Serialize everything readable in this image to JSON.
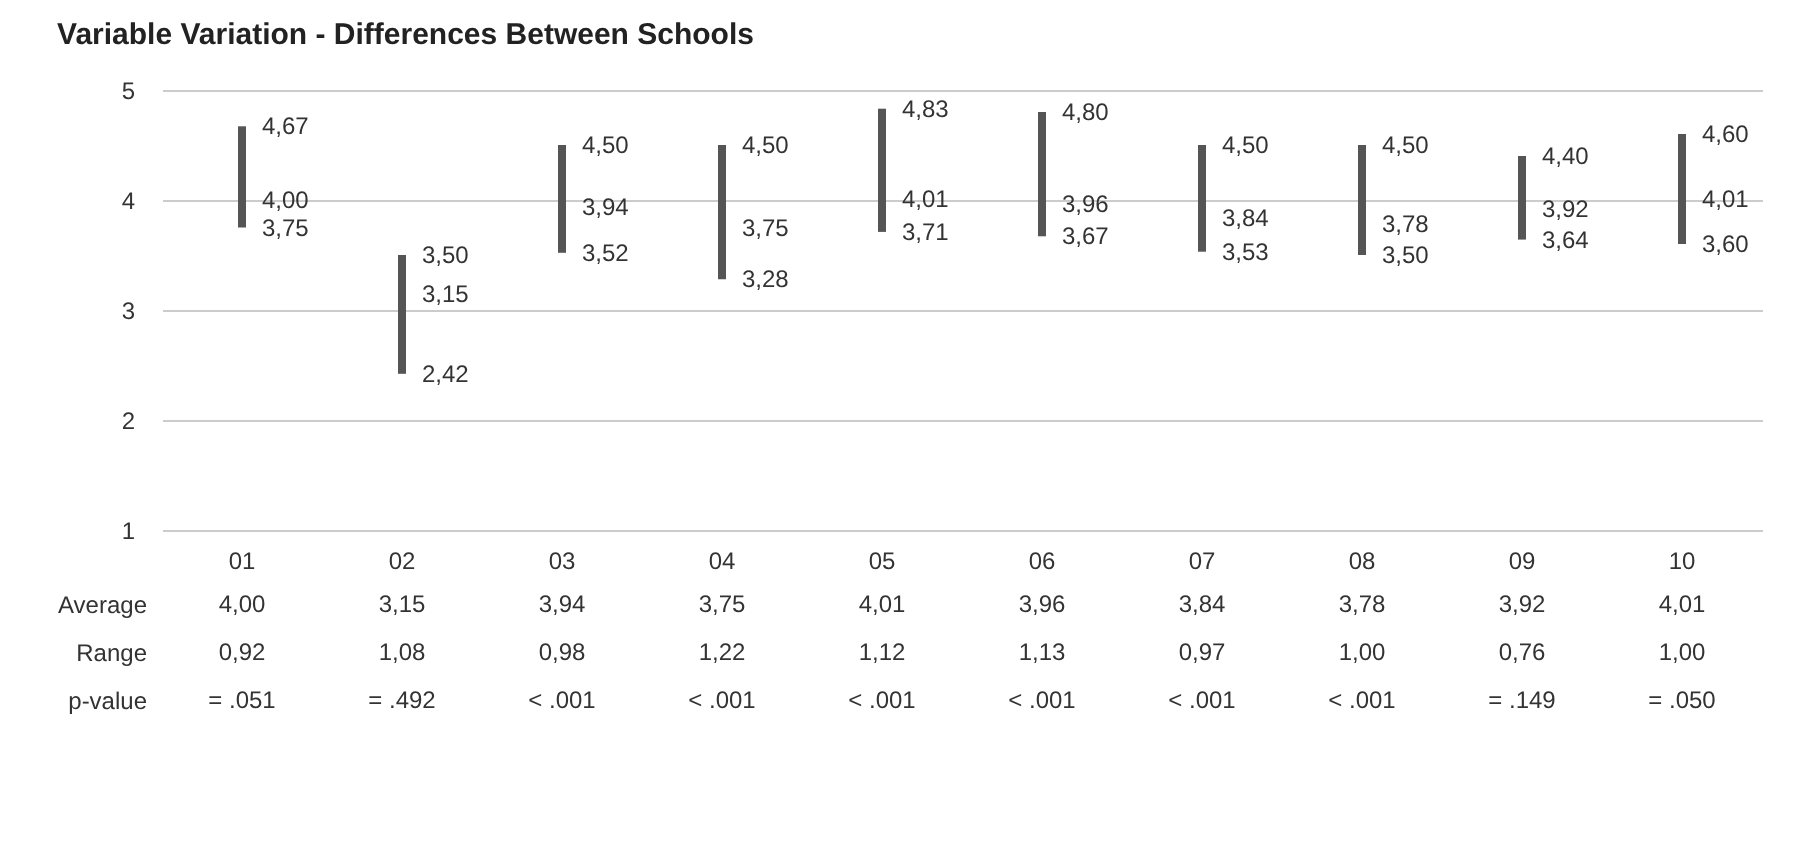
{
  "chart_data": {
    "type": "bar",
    "title": "Variable Variation - Differences Between Schools",
    "categories": [
      "01",
      "02",
      "03",
      "04",
      "05",
      "06",
      "07",
      "08",
      "09",
      "10"
    ],
    "series": [
      {
        "name": "Range",
        "base": [
          3.75,
          2.42,
          3.52,
          3.28,
          3.71,
          3.67,
          3.53,
          3.5,
          3.64,
          3.6
        ],
        "color": "#555555",
        "values": [
          0.92,
          1.08,
          0.98,
          1.22,
          1.12,
          1.13,
          0.97,
          1.0,
          0.76,
          1.0
        ],
        "value_labels": [
          "0,92",
          "1,08",
          "0,98",
          "1,22",
          "1,12",
          "1,13",
          "0,97",
          "1,00",
          "0,76",
          "1,00"
        ]
      }
    ],
    "ylim": [
      1,
      5
    ],
    "yticks": [
      1,
      2,
      3,
      4,
      5
    ],
    "grid": "y",
    "annotations": [
      {
        "text": "4,67",
        "x": "01",
        "y": 4.67
      },
      {
        "text": "4,00",
        "x": "01",
        "y": 4.0
      },
      {
        "text": "3,75",
        "x": "01",
        "y": 3.75
      },
      {
        "text": "3,50",
        "x": "02",
        "y": 3.5
      },
      {
        "text": "3,15",
        "x": "02",
        "y": 3.15
      },
      {
        "text": "2,42",
        "x": "02",
        "y": 2.42
      },
      {
        "text": "4,50",
        "x": "03",
        "y": 4.5
      },
      {
        "text": "3,94",
        "x": "03",
        "y": 3.94
      },
      {
        "text": "3,52",
        "x": "03",
        "y": 3.52
      },
      {
        "text": "4,50",
        "x": "04",
        "y": 4.5
      },
      {
        "text": "3,75",
        "x": "04",
        "y": 3.75
      },
      {
        "text": "3,28",
        "x": "04",
        "y": 3.28
      },
      {
        "text": "4,83",
        "x": "05",
        "y": 4.83
      },
      {
        "text": "4,01",
        "x": "05",
        "y": 4.01
      },
      {
        "text": "3,71",
        "x": "05",
        "y": 3.71
      },
      {
        "text": "4,80",
        "x": "06",
        "y": 4.8
      },
      {
        "text": "3,96",
        "x": "06",
        "y": 3.96
      },
      {
        "text": "3,67",
        "x": "06",
        "y": 3.67
      },
      {
        "text": "4,50",
        "x": "07",
        "y": 4.5
      },
      {
        "text": "3,84",
        "x": "07",
        "y": 3.84
      },
      {
        "text": "3,53",
        "x": "07",
        "y": 3.53
      },
      {
        "text": "4,50",
        "x": "08",
        "y": 4.5
      },
      {
        "text": "3,78",
        "x": "08",
        "y": 3.78
      },
      {
        "text": "3,50",
        "x": "08",
        "y": 3.5
      },
      {
        "text": "4,40",
        "x": "09",
        "y": 4.4
      },
      {
        "text": "3,92",
        "x": "09",
        "y": 3.92
      },
      {
        "text": "3,64",
        "x": "09",
        "y": 3.64
      },
      {
        "text": "4,60",
        "x": "10",
        "y": 4.6
      },
      {
        "text": "4,01",
        "x": "10",
        "y": 4.01
      },
      {
        "text": "3,60",
        "x": "10",
        "y": 3.6
      },
      "Average",
      "4,00",
      "3,15",
      "3,94",
      "3,75",
      "4,01",
      "3,96",
      "3,84",
      "3,78",
      "3,92",
      "4,01",
      "p-value",
      "= .051",
      "= .492",
      "< .001",
      "< .001",
      "< .001",
      "< .001",
      "< .001",
      "< .001",
      "= .149",
      "= .050"
    ]
  }
}
